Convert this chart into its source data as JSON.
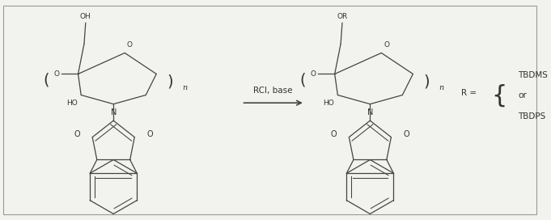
{
  "background_color": "#f2f2ee",
  "border_color": "#aaaaaa",
  "line_color": "#444444",
  "text_color": "#333333",
  "arrow_label": "RCl, base",
  "r_options": [
    "TBDMS",
    "or",
    "TBDPS"
  ],
  "figsize": [
    6.81,
    2.72
  ],
  "dpi": 100
}
